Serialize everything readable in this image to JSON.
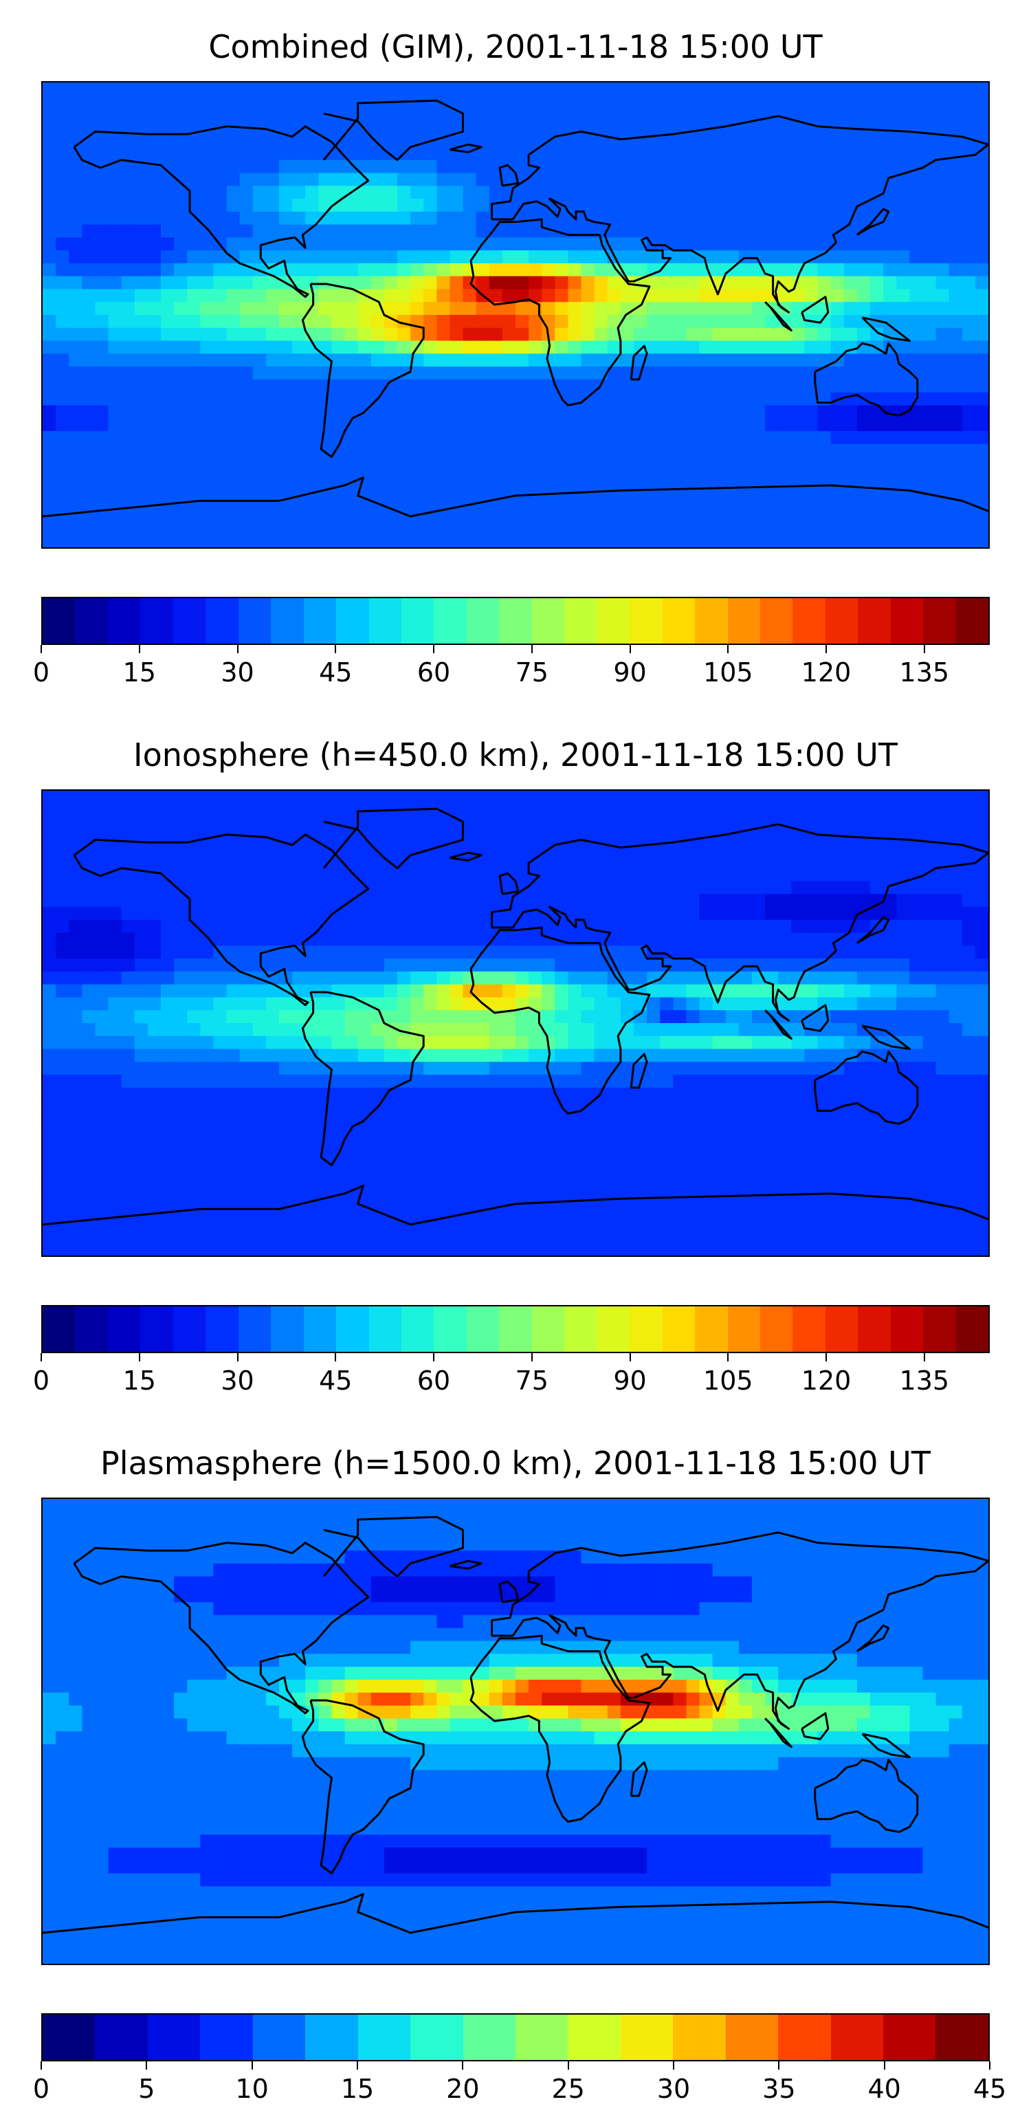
{
  "panels": [
    {
      "title": "Combined (GIM), 2001-11-18 15:00 UT",
      "colorbar_ticks": [
        "0",
        "15",
        "30",
        "45",
        "60",
        "75",
        "90",
        "105",
        "120",
        "135"
      ],
      "colorbar_min": 0,
      "colorbar_max": 145,
      "colorbar_levels": 29,
      "field": {
        "background": 0.22,
        "blobs": [
          {
            "lon": -40,
            "lat": 3,
            "rx": 120,
            "ry": 16,
            "value": 0.35
          },
          {
            "lon": 0,
            "lat": 12,
            "rx": 32,
            "ry": 8,
            "value": 0.5
          },
          {
            "lon": -10,
            "lat": -7,
            "rx": 40,
            "ry": 8,
            "value": 0.45
          },
          {
            "lon": 95,
            "lat": 10,
            "rx": 55,
            "ry": 8,
            "value": 0.35
          },
          {
            "lon": 95,
            "lat": -8,
            "rx": 40,
            "ry": 6,
            "value": 0.25
          },
          {
            "lon": -60,
            "lat": 45,
            "rx": 35,
            "ry": 10,
            "value": 0.2
          },
          {
            "lon": 150,
            "lat": -40,
            "rx": 40,
            "ry": 6,
            "value": -0.12
          },
          {
            "lon": -150,
            "lat": 20,
            "rx": 25,
            "ry": 12,
            "value": -0.08
          }
        ]
      }
    },
    {
      "title": "Ionosphere  (h=450.0 km), 2001-11-18 15:00 UT",
      "colorbar_ticks": [
        "0",
        "15",
        "30",
        "45",
        "60",
        "75",
        "90",
        "105",
        "120",
        "135"
      ],
      "colorbar_min": 0,
      "colorbar_max": 145,
      "colorbar_levels": 29,
      "field": {
        "background": 0.2,
        "blobs": [
          {
            "lon": -45,
            "lat": 2,
            "rx": 110,
            "ry": 15,
            "value": 0.25
          },
          {
            "lon": -10,
            "lat": 12,
            "rx": 25,
            "ry": 7,
            "value": 0.38
          },
          {
            "lon": -20,
            "lat": -8,
            "rx": 40,
            "ry": 7,
            "value": 0.22
          },
          {
            "lon": 60,
            "lat": 5,
            "rx": 12,
            "ry": 5,
            "value": -0.15
          },
          {
            "lon": 100,
            "lat": 12,
            "rx": 50,
            "ry": 6,
            "value": 0.22
          },
          {
            "lon": 90,
            "lat": -8,
            "rx": 45,
            "ry": 5,
            "value": 0.18
          },
          {
            "lon": 120,
            "lat": 45,
            "rx": 45,
            "ry": 7,
            "value": -0.1
          },
          {
            "lon": -160,
            "lat": 30,
            "rx": 25,
            "ry": 12,
            "value": -0.1
          }
        ]
      }
    },
    {
      "title": "Plasmasphere (h=1500.0 km), 2001-11-18 15:00 UT",
      "colorbar_ticks": [
        "0",
        "5",
        "10",
        "15",
        "20",
        "25",
        "30",
        "35",
        "40",
        "45"
      ],
      "colorbar_min": 0,
      "colorbar_max": 45,
      "colorbar_levels": 18,
      "field": {
        "background": 0.25,
        "blobs": [
          {
            "lon": -50,
            "lat": 12,
            "rx": 25,
            "ry": 9,
            "value": 0.45
          },
          {
            "lon": 10,
            "lat": 15,
            "rx": 25,
            "ry": 8,
            "value": 0.42
          },
          {
            "lon": 55,
            "lat": 12,
            "rx": 28,
            "ry": 10,
            "value": 0.48
          },
          {
            "lon": 20,
            "lat": 10,
            "rx": 110,
            "ry": 18,
            "value": 0.18
          },
          {
            "lon": 120,
            "lat": 5,
            "rx": 50,
            "ry": 10,
            "value": 0.15
          },
          {
            "lon": -20,
            "lat": 55,
            "rx": 100,
            "ry": 12,
            "value": -0.1
          },
          {
            "lon": 0,
            "lat": -50,
            "rx": 140,
            "ry": 10,
            "value": -0.1
          }
        ]
      }
    }
  ],
  "colormap": [
    "#00007f",
    "#0000d0",
    "#0022ff",
    "#007cff",
    "#00d4ff",
    "#29ffce",
    "#7dff7a",
    "#ceff29",
    "#ffe600",
    "#ff9100",
    "#ff3b00",
    "#d00000",
    "#7f0000"
  ],
  "coastline_color": "#000000"
}
